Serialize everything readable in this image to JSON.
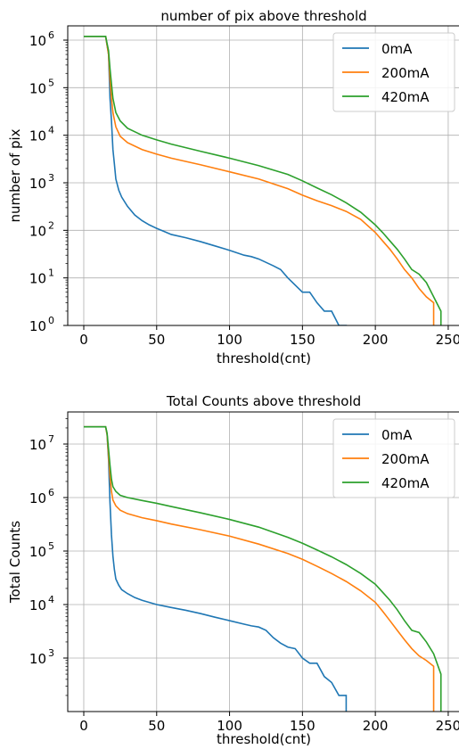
{
  "chart_data": [
    {
      "type": "line",
      "title": "number of pix above threshold",
      "xlabel": "threshold(cnt)",
      "ylabel": "number of pix",
      "xlim": [
        -11,
        258
      ],
      "ylim_log": [
        0,
        6.3
      ],
      "yscale": "log",
      "grid": true,
      "legend_position": "top-right",
      "x_ticks": [
        0,
        50,
        100,
        150,
        200,
        250
      ],
      "x_tick_labels": [
        "0",
        "50",
        "100",
        "150",
        "200",
        "250"
      ],
      "y_tick_exponents": [
        0,
        1,
        2,
        3,
        4,
        5,
        6
      ],
      "y_tick_base": "10",
      "series": [
        {
          "name": "0mA",
          "color": "#1f77b4",
          "x": [
            0,
            15,
            17,
            18,
            19,
            20,
            21,
            22,
            24,
            26,
            30,
            35,
            40,
            45,
            50,
            55,
            60,
            70,
            80,
            90,
            100,
            110,
            115,
            120,
            130,
            135,
            140,
            150,
            155,
            160,
            165,
            170,
            175,
            180,
            180
          ],
          "y": [
            1200000,
            1200000,
            500000,
            60000,
            20000,
            5000,
            2500,
            1200,
            700,
            500,
            320,
            210,
            160,
            130,
            110,
            95,
            82,
            70,
            58,
            47,
            38,
            30,
            28,
            25,
            18,
            15,
            10,
            5,
            5,
            3,
            2,
            2,
            1,
            1,
            0.3
          ]
        },
        {
          "name": "200mA",
          "color": "#ff7f0e",
          "x": [
            0,
            15,
            17,
            18,
            19,
            20,
            22,
            25,
            30,
            40,
            50,
            60,
            80,
            100,
            120,
            140,
            150,
            160,
            170,
            180,
            190,
            200,
            205,
            210,
            215,
            220,
            225,
            230,
            235,
            240,
            240
          ],
          "y": [
            1200000,
            1200000,
            500000,
            150000,
            60000,
            30000,
            15000,
            9500,
            7000,
            5000,
            4000,
            3300,
            2400,
            1700,
            1200,
            750,
            550,
            420,
            330,
            250,
            170,
            90,
            60,
            40,
            25,
            15,
            10,
            6,
            4,
            3,
            0.3
          ]
        },
        {
          "name": "420mA",
          "color": "#2ca02c",
          "x": [
            0,
            15,
            17,
            18,
            19,
            20,
            22,
            25,
            30,
            40,
            50,
            60,
            80,
            100,
            120,
            140,
            150,
            160,
            170,
            180,
            190,
            200,
            205,
            210,
            215,
            220,
            225,
            230,
            235,
            240,
            245,
            245
          ],
          "y": [
            1200000,
            1200000,
            600000,
            250000,
            120000,
            60000,
            30000,
            20000,
            14000,
            10000,
            8000,
            6500,
            4600,
            3300,
            2300,
            1500,
            1100,
            780,
            560,
            380,
            240,
            130,
            90,
            60,
            40,
            25,
            15,
            12,
            8,
            4,
            2,
            0.3
          ]
        }
      ]
    },
    {
      "type": "line",
      "title": "Total Counts above threshold",
      "xlabel": "threshold(cnt)",
      "ylabel": "Total Counts",
      "xlim": [
        -11,
        258
      ],
      "ylim_log": [
        2.0,
        7.6
      ],
      "yscale": "log",
      "grid": true,
      "legend_position": "top-right",
      "x_ticks": [
        0,
        50,
        100,
        150,
        200,
        250
      ],
      "x_tick_labels": [
        "0",
        "50",
        "100",
        "150",
        "200",
        "250"
      ],
      "y_tick_exponents": [
        3,
        4,
        5,
        6,
        7
      ],
      "y_tick_base": "10",
      "series": [
        {
          "name": "0mA",
          "color": "#1f77b4",
          "x": [
            0,
            15,
            16,
            17,
            18,
            19,
            20,
            21,
            22,
            24,
            26,
            30,
            35,
            40,
            50,
            60,
            70,
            80,
            90,
            100,
            110,
            115,
            120,
            125,
            130,
            135,
            140,
            145,
            150,
            155,
            160,
            165,
            170,
            175,
            180,
            180
          ],
          "y": [
            21000000,
            21000000,
            15000000,
            5000000,
            800000,
            200000,
            80000,
            45000,
            30000,
            23000,
            19000,
            16000,
            13500,
            12000,
            10000,
            8800,
            7800,
            6800,
            5800,
            5000,
            4300,
            4000,
            3800,
            3300,
            2400,
            1900,
            1600,
            1500,
            1000,
            800,
            800,
            450,
            350,
            200,
            200,
            10
          ]
        },
        {
          "name": "200mA",
          "color": "#ff7f0e",
          "x": [
            0,
            15,
            16,
            17,
            18,
            19,
            20,
            22,
            25,
            30,
            40,
            50,
            60,
            80,
            100,
            120,
            140,
            150,
            160,
            170,
            180,
            190,
            200,
            205,
            210,
            215,
            220,
            225,
            230,
            235,
            240,
            240
          ],
          "y": [
            21000000,
            21000000,
            15000000,
            6000000,
            2500000,
            1300000,
            900000,
            700000,
            580000,
            500000,
            420000,
            370000,
            320000,
            250000,
            190000,
            135000,
            90000,
            70000,
            52000,
            38000,
            27000,
            18000,
            11000,
            7500,
            5000,
            3300,
            2200,
            1500,
            1100,
            900,
            700,
            10
          ]
        },
        {
          "name": "420mA",
          "color": "#2ca02c",
          "x": [
            0,
            15,
            16,
            17,
            18,
            19,
            20,
            22,
            25,
            30,
            40,
            50,
            60,
            80,
            100,
            120,
            140,
            150,
            160,
            170,
            180,
            190,
            200,
            205,
            210,
            215,
            220,
            225,
            230,
            235,
            240,
            245,
            245
          ],
          "y": [
            21000000,
            21000000,
            16000000,
            8000000,
            4000000,
            2200000,
            1600000,
            1300000,
            1100000,
            1000000,
            880000,
            780000,
            680000,
            520000,
            390000,
            280000,
            180000,
            140000,
            105000,
            78000,
            56000,
            38000,
            24000,
            17000,
            12000,
            8000,
            5000,
            3300,
            3000,
            2000,
            1200,
            500,
            10
          ]
        }
      ]
    }
  ]
}
